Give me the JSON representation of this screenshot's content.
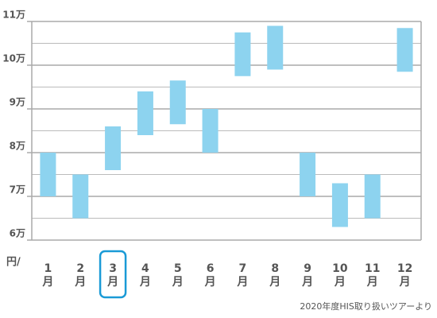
{
  "chart_data": {
    "type": "range_bar",
    "categories": [
      "1月",
      "2月",
      "3月",
      "4月",
      "5月",
      "6月",
      "7月",
      "8月",
      "9月",
      "10月",
      "11月",
      "12月"
    ],
    "high": [
      8.0,
      7.5,
      8.6,
      9.4,
      9.65,
      9.0,
      10.75,
      10.9,
      8.0,
      7.3,
      7.5,
      10.85
    ],
    "low": [
      7.0,
      6.5,
      7.6,
      8.4,
      8.65,
      8.0,
      9.75,
      9.9,
      7.0,
      6.3,
      6.5,
      9.85
    ],
    "color": "#8dd3ef",
    "ylim": [
      6,
      11
    ],
    "yticks": [
      {
        "value": 6,
        "label": "6万"
      },
      {
        "value": 7,
        "label": "7万"
      },
      {
        "value": 8,
        "label": "8万"
      },
      {
        "value": 9,
        "label": "9万"
      },
      {
        "value": 10,
        "label": "10万"
      },
      {
        "value": 11,
        "label": "11万"
      }
    ],
    "minor_yticks": [
      6.5,
      7.5,
      8.5,
      9.5,
      10.5
    ],
    "grid": true,
    "y_unit_label": "円/",
    "highlighted_category": 2,
    "highlight_color": "#1a9ad6",
    "source": "2020年度HIS取り扱いツアーより"
  }
}
